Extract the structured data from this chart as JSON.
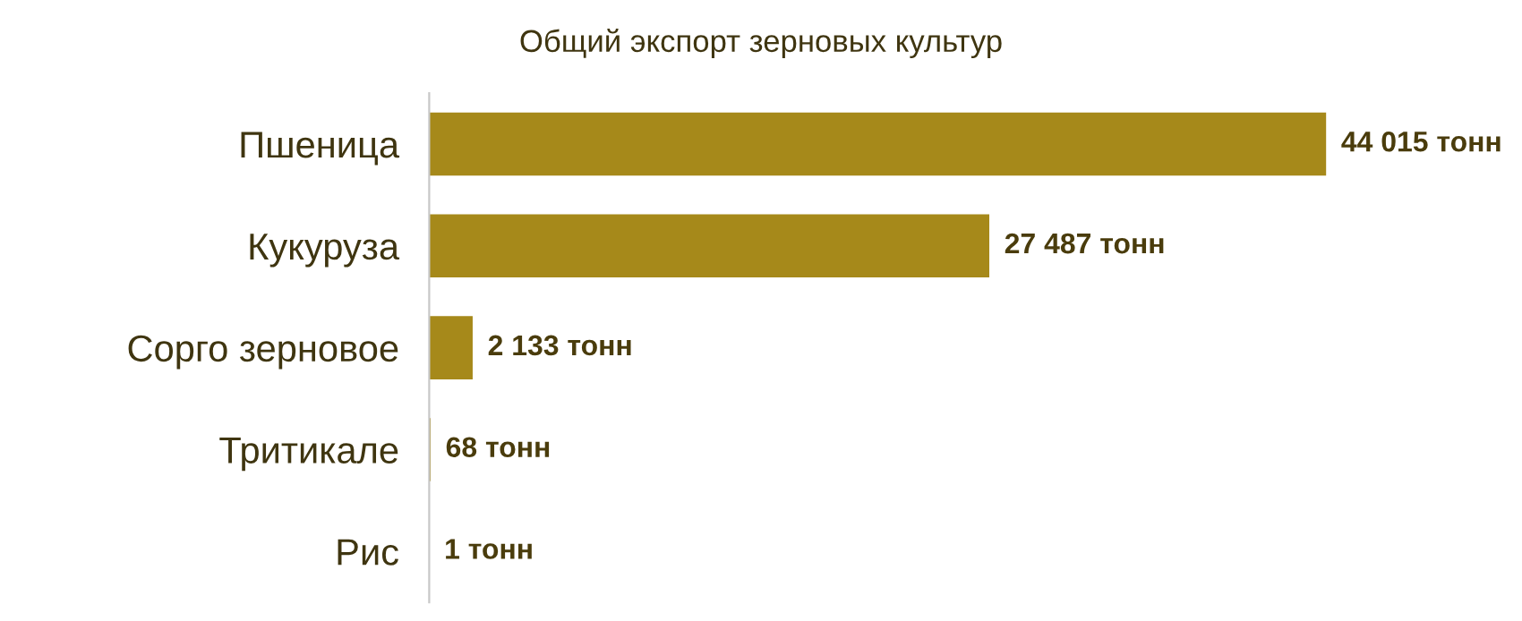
{
  "chart_data": {
    "type": "bar",
    "orientation": "horizontal",
    "title": "Общий экспорт зерновых культур",
    "categories": [
      "Пшеница",
      "Кукуруза",
      "Сорго зерновое",
      "Тритикале",
      "Рис"
    ],
    "values": [
      44015,
      27487,
      2133,
      68,
      1
    ],
    "value_labels": [
      "44 015 тонн",
      "27 487 тонн",
      "2 133 тонн",
      "68 тонн",
      "1 тонн"
    ],
    "color": "#a6891a",
    "grid": false,
    "legend": false
  }
}
